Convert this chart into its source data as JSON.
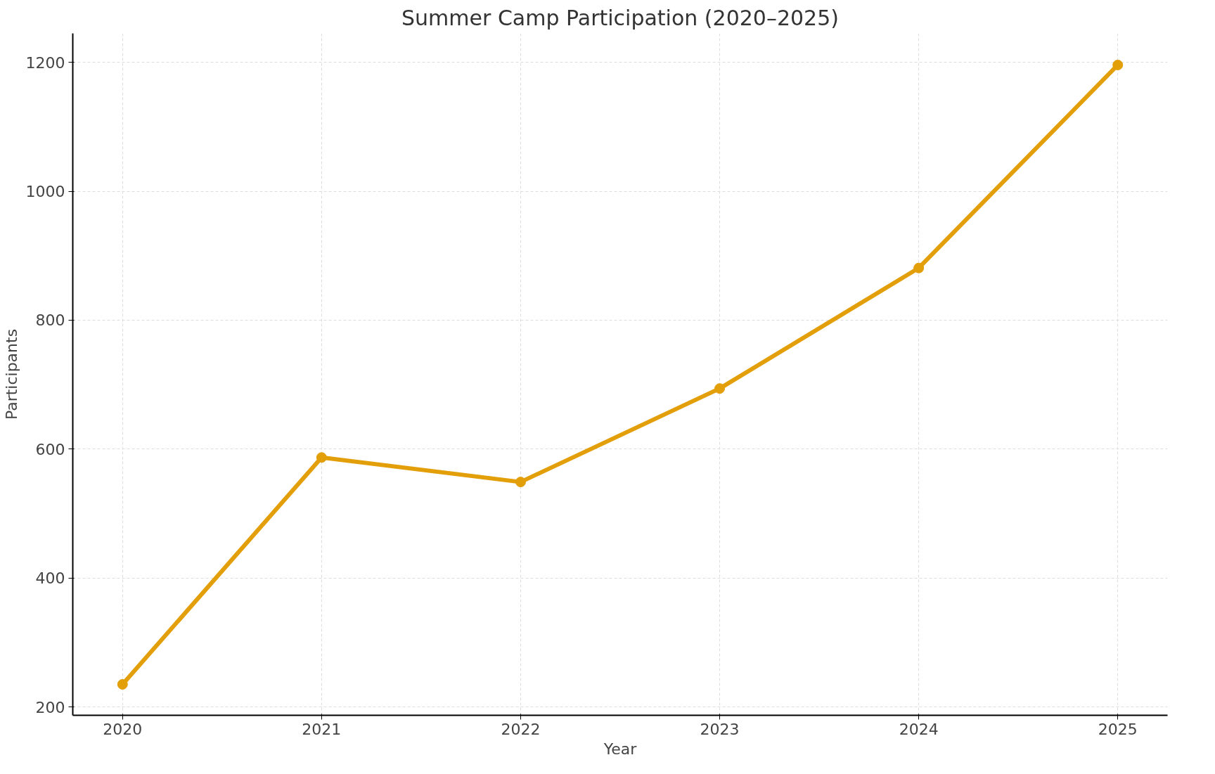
{
  "chart_data": {
    "type": "line",
    "title": "Summer Camp Participation (2020–2025)",
    "xlabel": "Year",
    "ylabel": "Participants",
    "x": [
      2020,
      2021,
      2022,
      2023,
      2024,
      2025
    ],
    "series": [
      {
        "color": "#e39f0a",
        "values": [
          235,
          587,
          549,
          694,
          881,
          1196
        ]
      }
    ],
    "xlim": [
      2019.75,
      2025.25
    ],
    "xticks": [
      2020,
      2021,
      2022,
      2023,
      2024,
      2025
    ],
    "ylim": [
      187,
      1245
    ],
    "yticks": [
      200,
      400,
      600,
      800,
      1000,
      1200
    ],
    "grid": true,
    "marker": "circle",
    "line_style": "solid"
  }
}
